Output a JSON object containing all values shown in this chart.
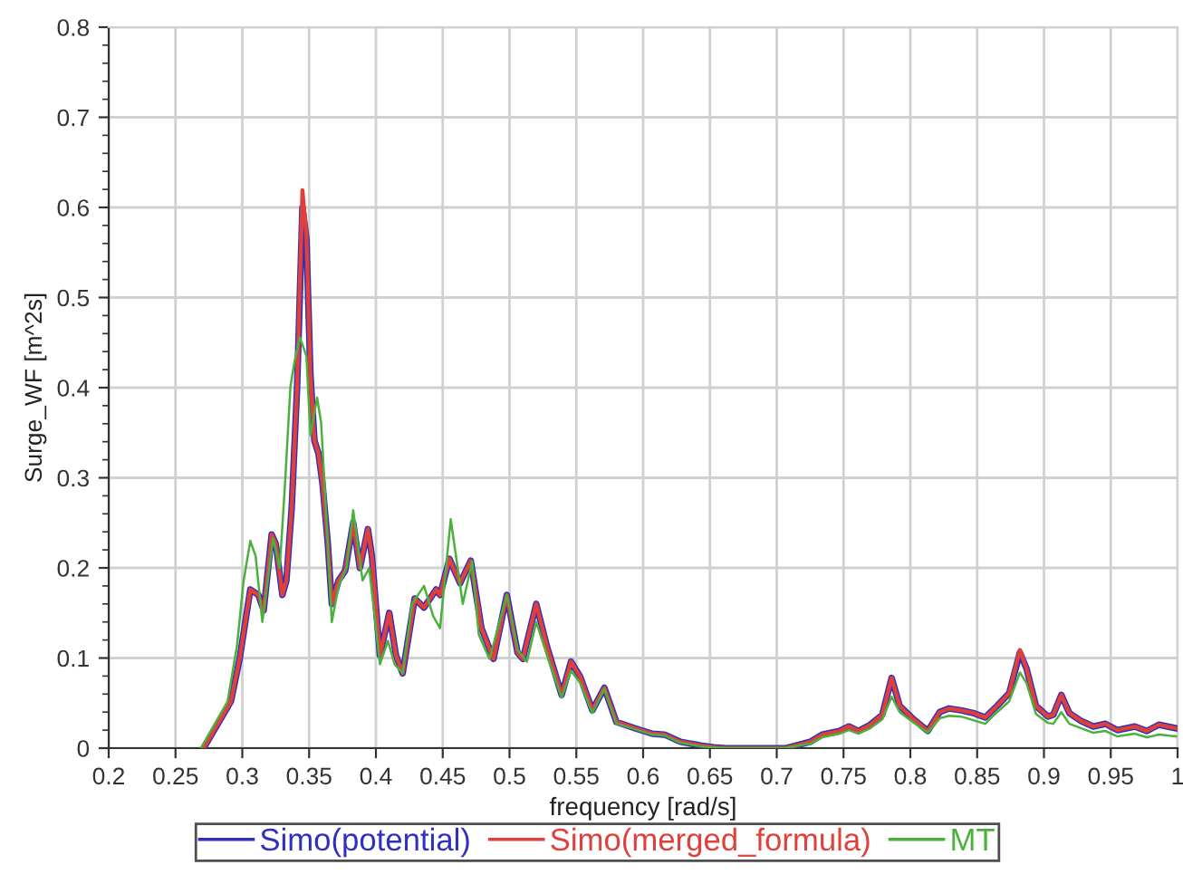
{
  "chart_data": {
    "type": "line",
    "xlabel": "frequency [rad/s]",
    "ylabel": "Surge_WF [m^2s]",
    "xlim": [
      0.2,
      1
    ],
    "ylim": [
      0,
      0.8
    ],
    "xticks": [
      0.2,
      0.25,
      0.3,
      0.35,
      0.4,
      0.45,
      0.5,
      0.55,
      0.6,
      0.65,
      0.7,
      0.75,
      0.8,
      0.85,
      0.9,
      0.95,
      1
    ],
    "yticks": [
      0,
      0.1,
      0.2,
      0.3,
      0.4,
      0.5,
      0.6,
      0.7,
      0.8
    ],
    "grid": true,
    "legend": "bottom",
    "marker": "none",
    "line_style": "solid",
    "series": [
      {
        "name": "Simo(potential)",
        "color": "#3030c0",
        "x": [
          0.271,
          0.2915,
          0.298,
          0.306,
          0.312,
          0.316,
          0.322,
          0.325,
          0.33,
          0.333,
          0.337,
          0.341,
          0.345,
          0.348,
          0.351,
          0.354,
          0.357,
          0.36,
          0.364,
          0.367,
          0.372,
          0.377,
          0.383,
          0.388,
          0.394,
          0.397,
          0.403,
          0.41,
          0.415,
          0.42,
          0.429,
          0.436,
          0.445,
          0.448,
          0.455,
          0.463,
          0.471,
          0.479,
          0.488,
          0.498,
          0.506,
          0.51,
          0.52,
          0.528,
          0.539,
          0.546,
          0.553,
          0.562,
          0.571,
          0.58,
          0.594,
          0.607,
          0.616,
          0.628,
          0.643,
          0.653,
          0.662,
          0.707,
          0.725,
          0.734,
          0.747,
          0.754,
          0.761,
          0.77,
          0.779,
          0.786,
          0.792,
          0.801,
          0.813,
          0.822,
          0.829,
          0.838,
          0.847,
          0.856,
          0.865,
          0.874,
          0.882,
          0.887,
          0.894,
          0.903,
          0.907,
          0.913,
          0.919,
          0.928,
          0.937,
          0.946,
          0.955,
          0.968,
          0.977,
          0.986,
          0.999
        ],
        "values": [
          0,
          0.052,
          0.099,
          0.176,
          0.17,
          0.153,
          0.237,
          0.227,
          0.17,
          0.186,
          0.267,
          0.4,
          0.6,
          0.565,
          0.414,
          0.341,
          0.327,
          0.294,
          0.227,
          0.16,
          0.186,
          0.197,
          0.25,
          0.2,
          0.243,
          0.213,
          0.103,
          0.15,
          0.103,
          0.083,
          0.166,
          0.156,
          0.176,
          0.17,
          0.21,
          0.183,
          0.208,
          0.133,
          0.099,
          0.17,
          0.106,
          0.099,
          0.16,
          0.113,
          0.059,
          0.096,
          0.079,
          0.042,
          0.067,
          0.029,
          0.022,
          0.016,
          0.015,
          0.007,
          0.003,
          0.001,
          0,
          0,
          0.007,
          0.015,
          0.019,
          0.024,
          0.019,
          0.026,
          0.037,
          0.078,
          0.047,
          0.034,
          0.019,
          0.04,
          0.044,
          0.042,
          0.039,
          0.034,
          0.047,
          0.061,
          0.106,
          0.088,
          0.047,
          0.035,
          0.037,
          0.059,
          0.039,
          0.03,
          0.024,
          0.027,
          0.02,
          0.024,
          0.019,
          0.026,
          0.022
        ]
      },
      {
        "name": "Simo(merged_formula)",
        "color": "#e0403a",
        "x": [
          0.271,
          0.2915,
          0.298,
          0.306,
          0.312,
          0.316,
          0.322,
          0.325,
          0.33,
          0.333,
          0.337,
          0.341,
          0.345,
          0.348,
          0.351,
          0.354,
          0.357,
          0.36,
          0.364,
          0.367,
          0.372,
          0.377,
          0.383,
          0.388,
          0.394,
          0.397,
          0.403,
          0.41,
          0.415,
          0.42,
          0.429,
          0.436,
          0.445,
          0.448,
          0.455,
          0.463,
          0.471,
          0.479,
          0.488,
          0.498,
          0.506,
          0.51,
          0.52,
          0.528,
          0.539,
          0.546,
          0.553,
          0.562,
          0.571,
          0.58,
          0.594,
          0.607,
          0.616,
          0.628,
          0.643,
          0.653,
          0.662,
          0.707,
          0.725,
          0.734,
          0.747,
          0.754,
          0.761,
          0.77,
          0.779,
          0.786,
          0.792,
          0.801,
          0.813,
          0.822,
          0.829,
          0.838,
          0.847,
          0.856,
          0.865,
          0.874,
          0.882,
          0.887,
          0.894,
          0.903,
          0.907,
          0.913,
          0.919,
          0.928,
          0.937,
          0.946,
          0.955,
          0.968,
          0.977,
          0.986,
          0.999
        ],
        "values": [
          0,
          0.052,
          0.099,
          0.176,
          0.17,
          0.153,
          0.237,
          0.227,
          0.17,
          0.186,
          0.267,
          0.4,
          0.619,
          0.569,
          0.414,
          0.341,
          0.327,
          0.294,
          0.227,
          0.16,
          0.186,
          0.197,
          0.25,
          0.2,
          0.243,
          0.213,
          0.103,
          0.15,
          0.103,
          0.083,
          0.166,
          0.156,
          0.176,
          0.17,
          0.21,
          0.183,
          0.208,
          0.133,
          0.099,
          0.17,
          0.106,
          0.099,
          0.16,
          0.113,
          0.059,
          0.096,
          0.079,
          0.042,
          0.067,
          0.029,
          0.022,
          0.016,
          0.015,
          0.007,
          0.003,
          0.001,
          0,
          0,
          0.007,
          0.015,
          0.019,
          0.024,
          0.019,
          0.026,
          0.037,
          0.078,
          0.047,
          0.034,
          0.019,
          0.04,
          0.044,
          0.042,
          0.039,
          0.034,
          0.047,
          0.061,
          0.109,
          0.088,
          0.047,
          0.035,
          0.037,
          0.059,
          0.039,
          0.03,
          0.024,
          0.027,
          0.02,
          0.024,
          0.019,
          0.026,
          0.022
        ]
      },
      {
        "name": "MT",
        "color": "#4cb03c",
        "x": [
          0.269,
          0.289,
          0.296,
          0.301,
          0.306,
          0.31,
          0.315,
          0.319,
          0.323,
          0.328,
          0.332,
          0.336,
          0.339,
          0.343,
          0.348,
          0.351,
          0.356,
          0.359,
          0.363,
          0.367,
          0.372,
          0.378,
          0.383,
          0.39,
          0.395,
          0.403,
          0.409,
          0.414,
          0.42,
          0.427,
          0.436,
          0.443,
          0.448,
          0.456,
          0.465,
          0.472,
          0.477,
          0.485,
          0.498,
          0.506,
          0.513,
          0.52,
          0.529,
          0.539,
          0.546,
          0.553,
          0.562,
          0.571,
          0.58,
          0.594,
          0.607,
          0.616,
          0.628,
          0.643,
          0.66,
          0.705,
          0.725,
          0.734,
          0.747,
          0.754,
          0.761,
          0.77,
          0.779,
          0.786,
          0.792,
          0.801,
          0.813,
          0.822,
          0.829,
          0.838,
          0.847,
          0.856,
          0.865,
          0.874,
          0.882,
          0.887,
          0.894,
          0.903,
          0.907,
          0.913,
          0.919,
          0.928,
          0.937,
          0.946,
          0.955,
          0.968,
          0.977,
          0.986,
          0.999
        ],
        "values": [
          0,
          0.052,
          0.113,
          0.186,
          0.23,
          0.213,
          0.14,
          0.186,
          0.233,
          0.2,
          0.294,
          0.401,
          0.428,
          0.456,
          0.435,
          0.347,
          0.389,
          0.361,
          0.254,
          0.14,
          0.18,
          0.2,
          0.264,
          0.186,
          0.2,
          0.093,
          0.119,
          0.093,
          0.083,
          0.16,
          0.18,
          0.146,
          0.133,
          0.254,
          0.16,
          0.207,
          0.126,
          0.099,
          0.17,
          0.109,
          0.096,
          0.14,
          0.099,
          0.056,
          0.086,
          0.072,
          0.039,
          0.066,
          0.027,
          0.021,
          0.015,
          0.014,
          0.006,
          0.002,
          0,
          0,
          0.005,
          0.012,
          0.016,
          0.02,
          0.016,
          0.022,
          0.032,
          0.057,
          0.04,
          0.03,
          0.017,
          0.033,
          0.036,
          0.035,
          0.031,
          0.027,
          0.04,
          0.052,
          0.084,
          0.072,
          0.038,
          0.028,
          0.027,
          0.04,
          0.027,
          0.022,
          0.017,
          0.019,
          0.013,
          0.016,
          0.012,
          0.015,
          0.013
        ]
      }
    ]
  }
}
